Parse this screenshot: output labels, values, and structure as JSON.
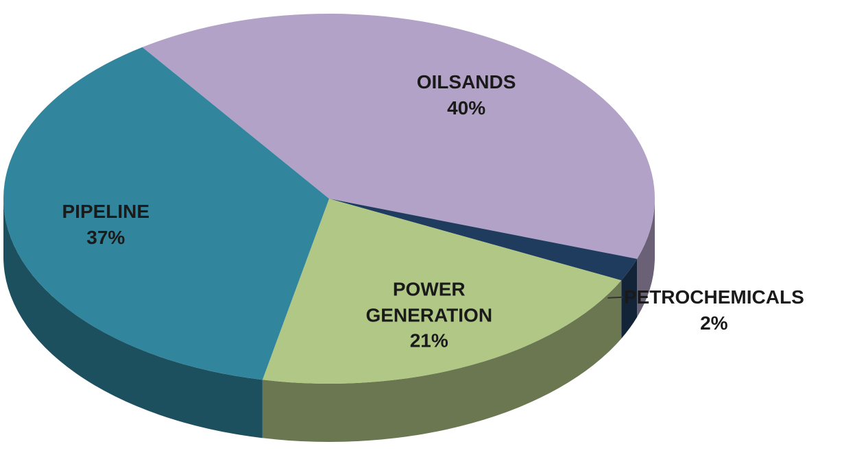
{
  "chart_data": {
    "type": "pie",
    "categories": [
      "OILSANDS",
      "PETROCHEMICALS",
      "POWER GENERATION",
      "PIPELINE"
    ],
    "values": [
      40,
      2,
      21,
      37
    ],
    "value_labels": [
      "40%",
      "2%",
      "21%",
      "37%"
    ],
    "colors": [
      "#b3a2c7",
      "#1f3c5f",
      "#b0c785",
      "#31859c"
    ]
  }
}
